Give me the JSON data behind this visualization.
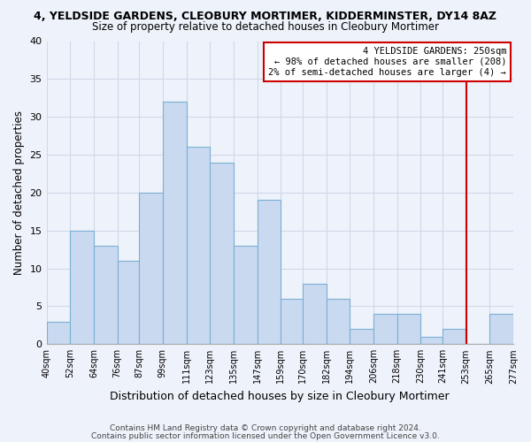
{
  "title1": "4, YELDSIDE GARDENS, CLEOBURY MORTIMER, KIDDERMINSTER, DY14 8AZ",
  "title2": "Size of property relative to detached houses in Cleobury Mortimer",
  "xlabel": "Distribution of detached houses by size in Cleobury Mortimer",
  "ylabel": "Number of detached properties",
  "bar_edges": [
    40,
    52,
    64,
    76,
    87,
    99,
    111,
    123,
    135,
    147,
    159,
    170,
    182,
    194,
    206,
    218,
    230,
    241,
    253,
    265,
    277
  ],
  "bar_heights": [
    3,
    15,
    13,
    11,
    20,
    32,
    26,
    24,
    13,
    19,
    6,
    8,
    6,
    2,
    4,
    4,
    1,
    2,
    0,
    4
  ],
  "tick_labels": [
    "40sqm",
    "52sqm",
    "64sqm",
    "76sqm",
    "87sqm",
    "99sqm",
    "111sqm",
    "123sqm",
    "135sqm",
    "147sqm",
    "159sqm",
    "170sqm",
    "182sqm",
    "194sqm",
    "206sqm",
    "218sqm",
    "230sqm",
    "241sqm",
    "253sqm",
    "265sqm",
    "277sqm"
  ],
  "bar_color": "#c9d9f0",
  "bar_edgecolor": "#7ab0d4",
  "ylim": [
    0,
    40
  ],
  "yticks": [
    0,
    5,
    10,
    15,
    20,
    25,
    30,
    35,
    40
  ],
  "vline_x": 253,
  "vline_color": "#cc0000",
  "annotation_title": "4 YELDSIDE GARDENS: 250sqm",
  "annotation_line1": "← 98% of detached houses are smaller (208)",
  "annotation_line2": "2% of semi-detached houses are larger (4) →",
  "annotation_box_color": "#cc0000",
  "footer1": "Contains HM Land Registry data © Crown copyright and database right 2024.",
  "footer2": "Contains public sector information licensed under the Open Government Licence v3.0.",
  "background_color": "#eef2fa",
  "grid_color": "#d0d8e8"
}
